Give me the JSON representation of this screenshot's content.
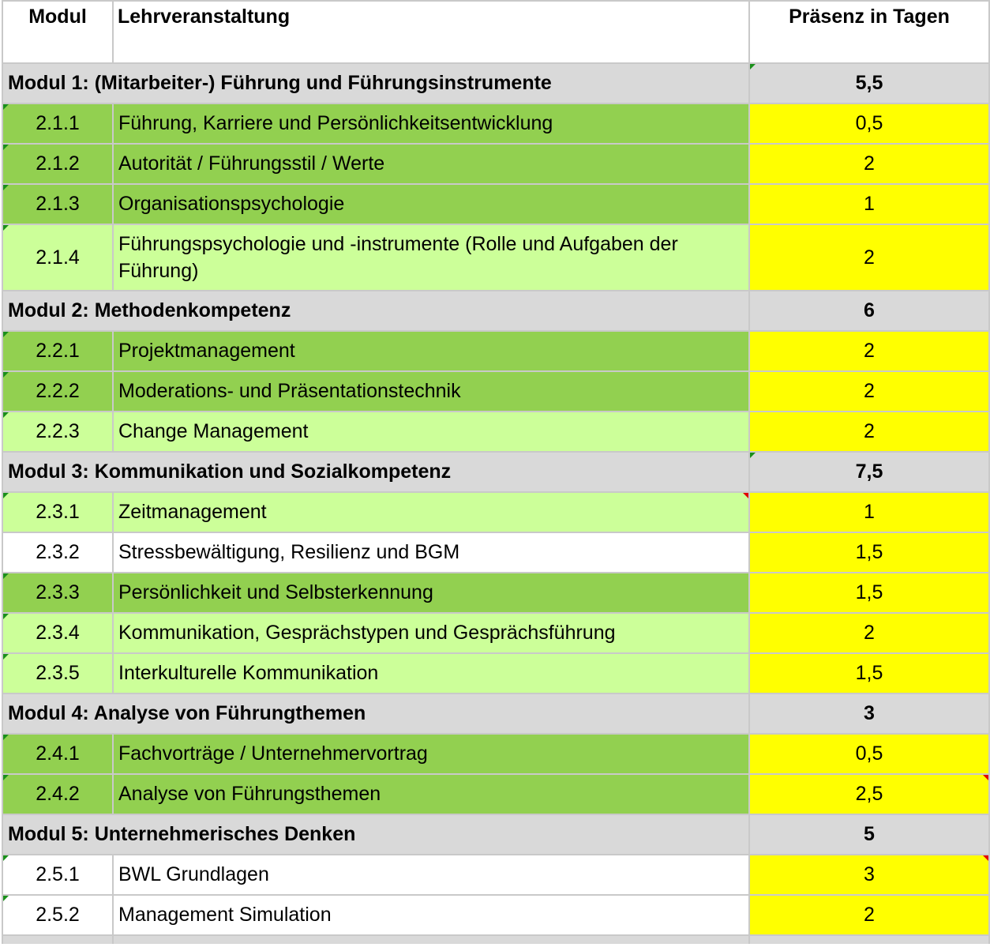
{
  "header": {
    "modul": "Modul",
    "lehrveranstaltung": "Lehrveranstaltung",
    "praesenz": "Präsenz in Tagen"
  },
  "modules": [
    {
      "title": "Modul 1: (Mitarbeiter-) Führung und Führungsinstrumente",
      "total": "5,5",
      "courses": [
        {
          "code": "2.1.1",
          "title": "Führung, Karriere und Persönlichkeitsentwicklung",
          "days": "0,5"
        },
        {
          "code": "2.1.2",
          "title": "Autorität / Führungsstil / Werte",
          "days": "2"
        },
        {
          "code": "2.1.3",
          "title": "Organisationspsychologie",
          "days": "1"
        },
        {
          "code": "2.1.4",
          "title": "Führungspsychologie und -instrumente (Rolle und Aufgaben der Führung)",
          "days": "2"
        }
      ]
    },
    {
      "title": "Modul 2: Methodenkompetenz",
      "total": "6",
      "courses": [
        {
          "code": "2.2.1",
          "title": "Projektmanagement",
          "days": "2"
        },
        {
          "code": "2.2.2",
          "title": "Moderations- und Präsentationstechnik",
          "days": "2"
        },
        {
          "code": "2.2.3",
          "title": "Change Management",
          "days": "2"
        }
      ]
    },
    {
      "title": "Modul 3: Kommunikation und Sozialkompetenz",
      "total": "7,5",
      "courses": [
        {
          "code": "2.3.1",
          "title": "Zeitmanagement",
          "days": "1"
        },
        {
          "code": "2.3.2",
          "title": "Stressbewältigung, Resilienz und BGM",
          "days": "1,5"
        },
        {
          "code": "2.3.3",
          "title": "Persönlichkeit und Selbsterkennung",
          "days": "1,5"
        },
        {
          "code": "2.3.4",
          "title": "Kommunikation, Gesprächstypen und Gesprächsführung",
          "days": "2"
        },
        {
          "code": "2.3.5",
          "title": "Interkulturelle Kommunikation",
          "days": "1,5"
        }
      ]
    },
    {
      "title": "Modul 4: Analyse von Führungthemen",
      "total": "3",
      "courses": [
        {
          "code": "2.4.1",
          "title": "Fachvorträge / Unternehmervortrag",
          "days": "0,5"
        },
        {
          "code": "2.4.2",
          "title": "Analyse von Führungsthemen",
          "days": "2,5"
        }
      ]
    },
    {
      "title": "Modul 5: Unternehmerisches Denken",
      "total": "5",
      "courses": [
        {
          "code": "2.5.1",
          "title": "BWL Grundlagen",
          "days": "3"
        },
        {
          "code": "2.5.2",
          "title": "Management Simulation",
          "days": "2"
        }
      ]
    }
  ],
  "colors": {
    "module_bg": "#d9d9d9",
    "course_dark_green": "#92d050",
    "course_light_green": "#ccff99",
    "days_yellow": "#ffff00",
    "gridline": "#c9c9c9"
  }
}
